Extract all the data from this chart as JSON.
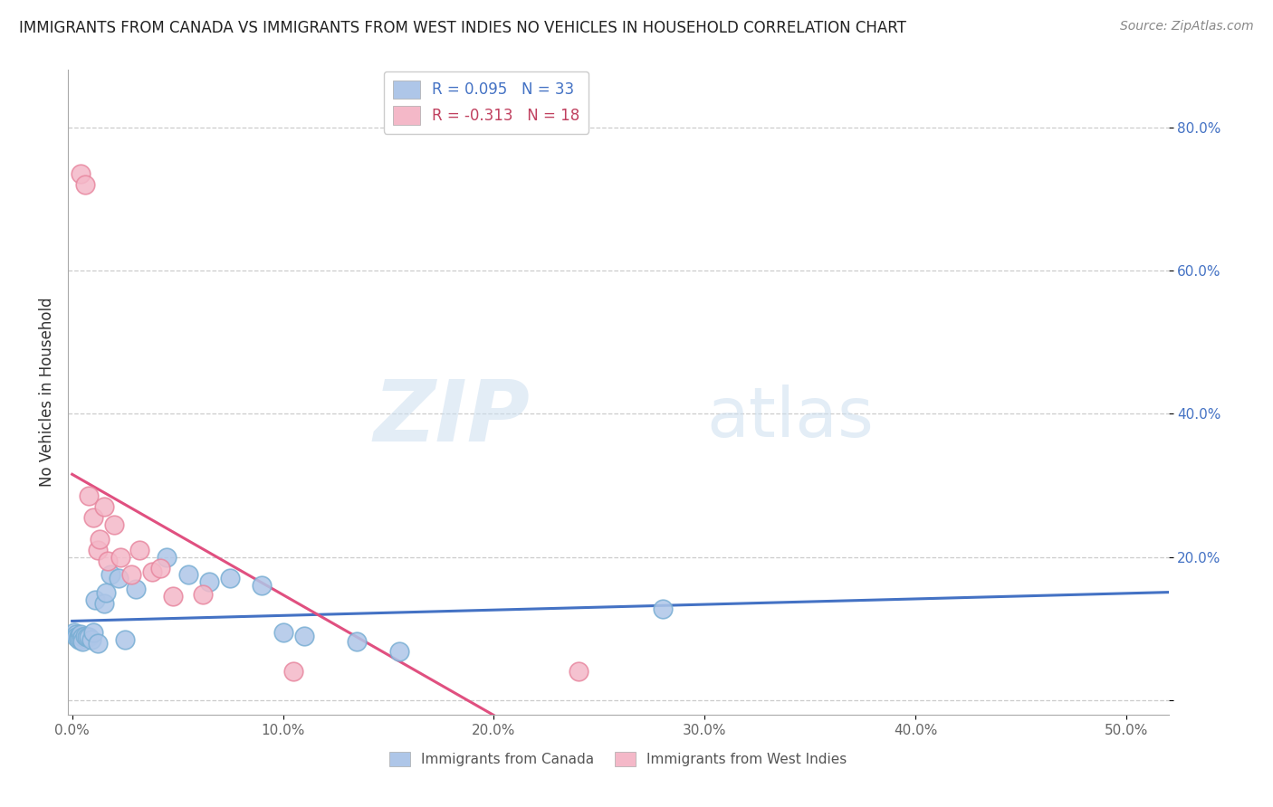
{
  "title": "IMMIGRANTS FROM CANADA VS IMMIGRANTS FROM WEST INDIES NO VEHICLES IN HOUSEHOLD CORRELATION CHART",
  "source": "Source: ZipAtlas.com",
  "ylabel": "No Vehicles in Household",
  "xlim": [
    -0.002,
    0.52
  ],
  "ylim": [
    -0.02,
    0.88
  ],
  "xtick_vals": [
    0.0,
    0.1,
    0.2,
    0.3,
    0.4,
    0.5
  ],
  "xticklabels": [
    "0.0%",
    "10.0%",
    "20.0%",
    "30.0%",
    "40.0%",
    "50.0%"
  ],
  "ytick_vals": [
    0.0,
    0.2,
    0.4,
    0.6,
    0.8
  ],
  "yticklabels": [
    "",
    "20.0%",
    "40.0%",
    "60.0%",
    "80.0%"
  ],
  "legend_line1": "R = 0.095   N = 33",
  "legend_line2": "R = -0.313   N = 18",
  "canada_color": "#aec6e8",
  "canada_edge_color": "#7aafd4",
  "west_indies_color": "#f4b8c8",
  "west_indies_edge_color": "#e888a0",
  "canada_line_color": "#4472c4",
  "west_indies_line_color": "#e05080",
  "watermark_zip": "ZIP",
  "watermark_atlas": "atlas",
  "canada_x": [
    0.001,
    0.002,
    0.002,
    0.003,
    0.003,
    0.003,
    0.004,
    0.004,
    0.005,
    0.005,
    0.006,
    0.007,
    0.008,
    0.009,
    0.01,
    0.011,
    0.012,
    0.015,
    0.016,
    0.018,
    0.022,
    0.025,
    0.03,
    0.045,
    0.055,
    0.065,
    0.075,
    0.09,
    0.1,
    0.11,
    0.135,
    0.155,
    0.28
  ],
  "canada_y": [
    0.095,
    0.092,
    0.088,
    0.09,
    0.087,
    0.085,
    0.092,
    0.085,
    0.088,
    0.082,
    0.09,
    0.088,
    0.088,
    0.085,
    0.095,
    0.14,
    0.08,
    0.135,
    0.15,
    0.175,
    0.17,
    0.085,
    0.155,
    0.2,
    0.175,
    0.165,
    0.17,
    0.16,
    0.095,
    0.09,
    0.082,
    0.068,
    0.128
  ],
  "west_indies_x": [
    0.004,
    0.006,
    0.008,
    0.01,
    0.012,
    0.013,
    0.015,
    0.017,
    0.02,
    0.023,
    0.028,
    0.032,
    0.038,
    0.042,
    0.048,
    0.062,
    0.105,
    0.24
  ],
  "west_indies_y": [
    0.735,
    0.72,
    0.285,
    0.255,
    0.21,
    0.225,
    0.27,
    0.195,
    0.245,
    0.2,
    0.175,
    0.21,
    0.18,
    0.185,
    0.145,
    0.148,
    0.04,
    0.04
  ]
}
